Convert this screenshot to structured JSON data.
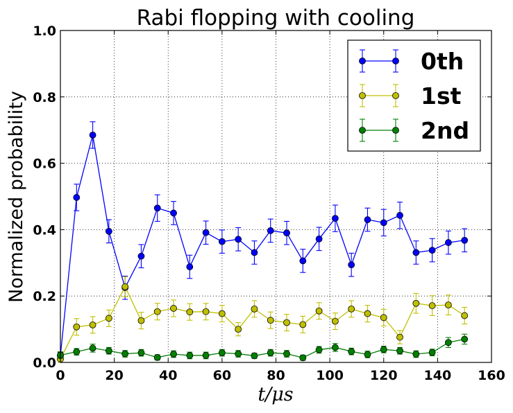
{
  "chart_data": {
    "type": "line",
    "title": "Rabi flopping with cooling",
    "xlabel": "t/μs",
    "ylabel": "Normalized probability",
    "xlim": [
      0,
      160
    ],
    "ylim": [
      0,
      1.0
    ],
    "xticks": [
      0,
      20,
      40,
      60,
      80,
      100,
      120,
      140,
      160
    ],
    "yticks": [
      0.0,
      0.2,
      0.4,
      0.6,
      0.8,
      1.0
    ],
    "xtick_labels": [
      "0",
      "20",
      "40",
      "60",
      "80",
      "100",
      "120",
      "140",
      "160"
    ],
    "ytick_labels": [
      "0.0",
      "0.2",
      "0.4",
      "0.6",
      "0.8",
      "1.0"
    ],
    "grid": true,
    "legend_position": "top-right",
    "x": [
      0,
      6,
      12,
      18,
      24,
      30,
      36,
      42,
      48,
      54,
      60,
      66,
      72,
      78,
      84,
      90,
      96,
      102,
      108,
      114,
      120,
      126,
      132,
      138,
      144,
      150
    ],
    "series": [
      {
        "name": "0th",
        "color": "#0000ff",
        "values": [
          0.02,
          0.497,
          0.685,
          0.395,
          0.225,
          0.32,
          0.465,
          0.45,
          0.288,
          0.391,
          0.364,
          0.371,
          0.331,
          0.397,
          0.39,
          0.306,
          0.372,
          0.434,
          0.294,
          0.43,
          0.421,
          0.443,
          0.331,
          0.338,
          0.361,
          0.368
        ],
        "errors": [
          0.01,
          0.04,
          0.04,
          0.035,
          0.035,
          0.035,
          0.04,
          0.035,
          0.035,
          0.035,
          0.035,
          0.035,
          0.035,
          0.035,
          0.035,
          0.035,
          0.035,
          0.04,
          0.035,
          0.035,
          0.04,
          0.04,
          0.035,
          0.035,
          0.035,
          0.035
        ]
      },
      {
        "name": "1st",
        "color": "#bfbf00",
        "values": [
          0.01,
          0.107,
          0.113,
          0.133,
          0.228,
          0.126,
          0.153,
          0.163,
          0.152,
          0.153,
          0.147,
          0.1,
          0.161,
          0.127,
          0.12,
          0.114,
          0.155,
          0.124,
          0.161,
          0.147,
          0.135,
          0.076,
          0.178,
          0.171,
          0.173,
          0.141
        ],
        "errors": [
          0.01,
          0.025,
          0.025,
          0.025,
          0.03,
          0.025,
          0.025,
          0.025,
          0.025,
          0.025,
          0.025,
          0.02,
          0.025,
          0.025,
          0.025,
          0.025,
          0.025,
          0.025,
          0.025,
          0.025,
          0.025,
          0.02,
          0.03,
          0.03,
          0.03,
          0.025
        ]
      },
      {
        "name": "2nd",
        "color": "#008000",
        "values": [
          0.022,
          0.032,
          0.043,
          0.035,
          0.026,
          0.029,
          0.015,
          0.025,
          0.021,
          0.021,
          0.029,
          0.026,
          0.02,
          0.029,
          0.026,
          0.014,
          0.038,
          0.045,
          0.033,
          0.024,
          0.039,
          0.035,
          0.025,
          0.03,
          0.06,
          0.07
        ],
        "errors": [
          0.01,
          0.01,
          0.012,
          0.01,
          0.01,
          0.01,
          0.008,
          0.01,
          0.01,
          0.01,
          0.01,
          0.01,
          0.008,
          0.01,
          0.01,
          0.008,
          0.01,
          0.012,
          0.01,
          0.01,
          0.01,
          0.01,
          0.01,
          0.01,
          0.015,
          0.015
        ]
      }
    ]
  }
}
